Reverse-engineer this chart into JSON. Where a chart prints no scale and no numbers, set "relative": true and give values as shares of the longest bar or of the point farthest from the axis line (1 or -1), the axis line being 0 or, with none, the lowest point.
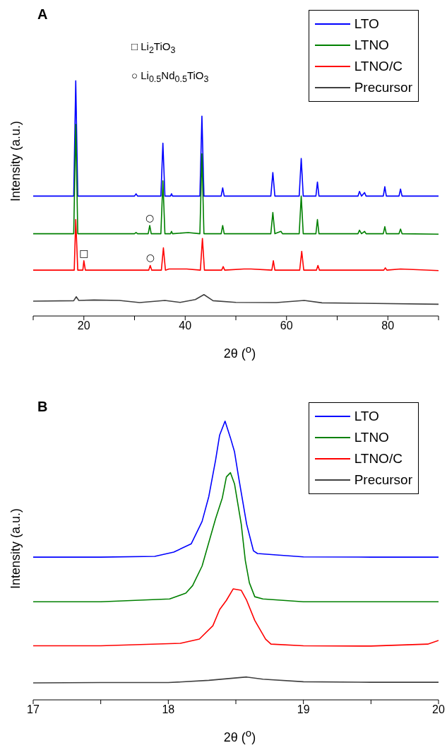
{
  "chart_data": [
    {
      "type": "line",
      "title": "A",
      "xlabel": "2θ ($^{o}$)",
      "ylabel": "Intensity (a.u.)",
      "relative": true,
      "xlim": [
        10,
        90
      ],
      "xticks": [
        {
          "value": 10,
          "label": null
        },
        20,
        {
          "value": 30,
          "label": null
        },
        40,
        {
          "value": 50,
          "label": null
        },
        60,
        {
          "value": 70,
          "label": null
        },
        80,
        {
          "value": 90,
          "label": null
        }
      ],
      "tick_labels": "x",
      "legend": "top right",
      "grid": false,
      "marker": "none",
      "line_style": "solid",
      "annotations": [
        "□  Li$_{2}$TiO$_{3}$",
        "○  Li$_{0.5}$Nd$_{0.5}$TiO$_{3}$",
        {
          "text": "□",
          "x": 20,
          "y": 0.235
        },
        {
          "text": "○",
          "x": 33,
          "y": 0.385
        },
        {
          "text": "○",
          "x": 33.1,
          "y": 0.215
        }
      ],
      "series": [
        {
          "name": "LTO",
          "color": "#0000ff",
          "x": [
            10,
            18,
            18.4,
            18.8,
            30,
            30.3,
            30.6,
            35.2,
            35.6,
            36,
            37.1,
            37.3,
            37.5,
            42.9,
            43.3,
            43.7,
            47.1,
            47.4,
            47.7,
            56.9,
            57.3,
            57.7,
            62.5,
            62.9,
            63.3,
            65.8,
            66.1,
            66.4,
            74.1,
            74.4,
            74.8,
            75.4,
            75.7,
            79.1,
            79.4,
            79.7,
            82.2,
            82.5,
            82.8,
            90
          ],
          "values": [
            0.51,
            0.51,
            1,
            0.51,
            0.51,
            0.52,
            0.51,
            0.51,
            0.735,
            0.51,
            0.51,
            0.52,
            0.51,
            0.51,
            0.85,
            0.51,
            0.51,
            0.545,
            0.51,
            0.51,
            0.61,
            0.51,
            0.51,
            0.67,
            0.51,
            0.51,
            0.57,
            0.51,
            0.51,
            0.53,
            0.51,
            0.525,
            0.51,
            0.51,
            0.55,
            0.51,
            0.51,
            0.54,
            0.51,
            0.51
          ]
        },
        {
          "name": "LTNO",
          "color": "#008000",
          "x": [
            10,
            18,
            18.4,
            18.8,
            30,
            30.3,
            30.6,
            32.7,
            33,
            33.3,
            35.2,
            35.6,
            36,
            37.1,
            37.3,
            37.5,
            40.6,
            42.9,
            43.3,
            43.7,
            47.1,
            47.4,
            47.7,
            56.9,
            57.3,
            57.7,
            58.9,
            59.2,
            62.5,
            62.9,
            63.3,
            65.8,
            66.1,
            66.4,
            74.1,
            74.4,
            74.8,
            75.4,
            75.7,
            79.1,
            79.4,
            79.7,
            82.2,
            82.5,
            82.8,
            90
          ],
          "values": [
            0.35,
            0.35,
            0.815,
            0.35,
            0.35,
            0.355,
            0.35,
            0.35,
            0.385,
            0.35,
            0.35,
            0.575,
            0.35,
            0.35,
            0.36,
            0.35,
            0.355,
            0.35,
            0.69,
            0.35,
            0.35,
            0.385,
            0.35,
            0.35,
            0.44,
            0.35,
            0.36,
            0.35,
            0.35,
            0.51,
            0.35,
            0.35,
            0.41,
            0.35,
            0.35,
            0.365,
            0.35,
            0.36,
            0.35,
            0.35,
            0.38,
            0.35,
            0.35,
            0.37,
            0.35,
            0.348
          ]
        },
        {
          "name": "LTNO/C",
          "color": "#ff0000",
          "x": [
            10,
            18.1,
            18.4,
            18.8,
            19.8,
            20,
            20.3,
            32.8,
            33.1,
            33.4,
            35.3,
            35.7,
            36.1,
            36.8,
            40.3,
            43,
            43.4,
            43.8,
            47.2,
            47.5,
            47.8,
            51.6,
            53,
            57.1,
            57.4,
            57.7,
            62.6,
            63,
            63.4,
            65.9,
            66.2,
            66.5,
            79.2,
            79.5,
            79.8,
            82.5,
            90
          ],
          "values": [
            0.195,
            0.195,
            0.41,
            0.195,
            0.195,
            0.235,
            0.195,
            0.195,
            0.215,
            0.195,
            0.195,
            0.29,
            0.195,
            0.2,
            0.2,
            0.195,
            0.33,
            0.195,
            0.195,
            0.21,
            0.195,
            0.2,
            0.2,
            0.195,
            0.235,
            0.195,
            0.195,
            0.275,
            0.195,
            0.195,
            0.215,
            0.195,
            0.195,
            0.205,
            0.195,
            0.2,
            0.193
          ]
        },
        {
          "name": "Precursor",
          "color": "#404040",
          "x": [
            10,
            18,
            18.5,
            19,
            22,
            27,
            31,
            36,
            39,
            42,
            43.7,
            45.5,
            50,
            58,
            63.5,
            67,
            75,
            90
          ],
          "values": [
            0.063,
            0.065,
            0.082,
            0.066,
            0.068,
            0.066,
            0.057,
            0.066,
            0.058,
            0.07,
            0.091,
            0.065,
            0.058,
            0.057,
            0.066,
            0.056,
            0.054,
            0.05
          ]
        }
      ]
    },
    {
      "type": "line",
      "title": "B",
      "xlabel": "2θ ($^{o}$)",
      "ylabel": "Intensity (a.u.)",
      "relative": true,
      "xlim": [
        17,
        20
      ],
      "xticks": [
        17,
        {
          "value": 17.5,
          "label": null
        },
        18,
        {
          "value": 18.5,
          "label": null
        },
        19,
        {
          "value": 19.5,
          "label": null
        },
        20
      ],
      "tick_labels": "x",
      "legend": "top right",
      "grid": false,
      "marker": "none",
      "line_style": "solid",
      "series": [
        {
          "name": "LTO",
          "color": "#0000ff",
          "x": [
            17,
            17.5,
            17.9,
            18.04,
            18.17,
            18.25,
            18.3,
            18.35,
            18.38,
            18.42,
            18.46,
            18.49,
            18.52,
            18.58,
            18.63,
            18.66,
            18.8,
            19,
            19.5,
            20
          ],
          "values": [
            0.512,
            0.512,
            0.515,
            0.53,
            0.56,
            0.64,
            0.73,
            0.86,
            0.95,
            1,
            0.94,
            0.89,
            0.8,
            0.63,
            0.535,
            0.525,
            0.52,
            0.513,
            0.512,
            0.512
          ]
        },
        {
          "name": "LTNO",
          "color": "#008000",
          "x": [
            17,
            17.5,
            18.01,
            18.13,
            18.18,
            18.25,
            18.35,
            18.4,
            18.43,
            18.46,
            18.49,
            18.54,
            18.57,
            18.6,
            18.64,
            18.7,
            19,
            19.5,
            20
          ],
          "values": [
            0.352,
            0.352,
            0.362,
            0.383,
            0.41,
            0.48,
            0.65,
            0.725,
            0.8,
            0.815,
            0.775,
            0.63,
            0.5,
            0.42,
            0.37,
            0.362,
            0.352,
            0.352,
            0.352
          ]
        },
        {
          "name": "LTNO/C",
          "color": "#ff0000",
          "x": [
            17,
            17.5,
            18.09,
            18.23,
            18.33,
            18.38,
            18.43,
            18.48,
            18.54,
            18.58,
            18.64,
            18.72,
            18.76,
            19,
            19.5,
            19.92,
            20
          ],
          "values": [
            0.194,
            0.194,
            0.203,
            0.218,
            0.266,
            0.324,
            0.357,
            0.398,
            0.393,
            0.357,
            0.285,
            0.218,
            0.2,
            0.194,
            0.193,
            0.2,
            0.213
          ]
        },
        {
          "name": "Precursor",
          "color": "#404040",
          "x": [
            17,
            17.5,
            18,
            18.3,
            18.58,
            18.7,
            19,
            19.5,
            20
          ],
          "values": [
            0.061,
            0.062,
            0.062,
            0.07,
            0.082,
            0.074,
            0.065,
            0.063,
            0.063
          ]
        }
      ]
    }
  ]
}
